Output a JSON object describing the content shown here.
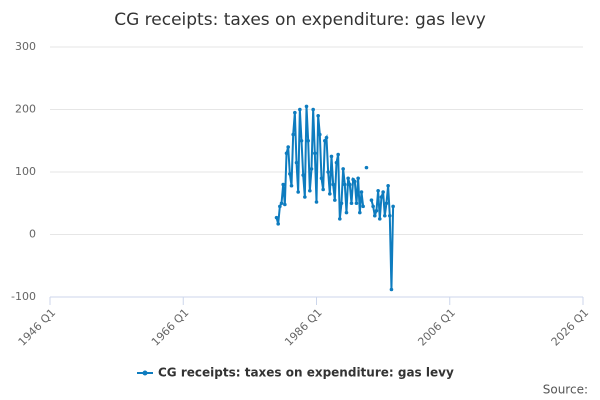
{
  "chart_data": {
    "type": "line",
    "title": "CG receipts: taxes on expenditure: gas levy",
    "x": [
      "1980 Q1",
      "1980 Q2",
      "1980 Q3",
      "1980 Q4",
      "1981 Q1",
      "1981 Q2",
      "1981 Q3",
      "1981 Q4",
      "1982 Q1",
      "1982 Q2",
      "1982 Q3",
      "1982 Q4",
      "1983 Q1",
      "1983 Q2",
      "1983 Q3",
      "1983 Q4",
      "1984 Q1",
      "1984 Q2",
      "1984 Q3",
      "1984 Q4",
      "1985 Q1",
      "1985 Q2",
      "1985 Q3",
      "1985 Q4",
      "1986 Q1",
      "1986 Q2",
      "1986 Q3",
      "1986 Q4",
      "1987 Q1",
      "1987 Q2",
      "1987 Q3",
      "1987 Q4",
      "1988 Q1",
      "1988 Q2",
      "1988 Q3",
      "1988 Q4",
      "1989 Q1",
      "1989 Q2",
      "1989 Q3",
      "1989 Q4",
      "1990 Q1",
      "1990 Q2",
      "1990 Q3",
      "1990 Q4",
      "1991 Q1",
      "1991 Q2",
      "1991 Q3",
      "1991 Q4",
      "1992 Q1",
      "1992 Q2",
      "1992 Q3",
      "1992 Q4",
      "1993 Q1",
      "1993 Q2",
      "1993 Q3",
      "1993 Q4",
      "1994 Q1",
      "1994 Q2",
      "1994 Q3",
      "1994 Q4",
      "1995 Q1",
      "1995 Q2",
      "1995 Q3",
      "1995 Q4",
      "1996 Q1",
      "1996 Q2",
      "1996 Q3",
      "1996 Q4",
      "1997 Q1",
      "1997 Q2",
      "1997 Q3"
    ],
    "series": [
      {
        "name": "CG receipts: taxes on expenditure: gas levy",
        "color": "#0e7cbf",
        "values": [
          27,
          17,
          45,
          50,
          80,
          48,
          130,
          140,
          97,
          78,
          160,
          195,
          115,
          68,
          200,
          150,
          95,
          60,
          205,
          150,
          70,
          105,
          200,
          130,
          52,
          190,
          160,
          90,
          72,
          150,
          155,
          100,
          65,
          125,
          80,
          55,
          115,
          128,
          25,
          50,
          105,
          80,
          35,
          90,
          80,
          50,
          88,
          85,
          50,
          90,
          35,
          68,
          45,
          null,
          107,
          null,
          null,
          55,
          45,
          30,
          38,
          70,
          25,
          60,
          68,
          30,
          50,
          78,
          30,
          -88,
          45
        ]
      }
    ],
    "xlim": [
      "1946 Q1",
      "2026 Q1"
    ],
    "xticks": [
      "1946 Q1",
      "1966 Q1",
      "1986 Q1",
      "2006 Q1",
      "2026 Q1"
    ],
    "ylim": [
      -100,
      300
    ],
    "yticks": [
      -100,
      0,
      100,
      200,
      300
    ],
    "grid": true,
    "legend": "bottom",
    "source": "Source:"
  }
}
